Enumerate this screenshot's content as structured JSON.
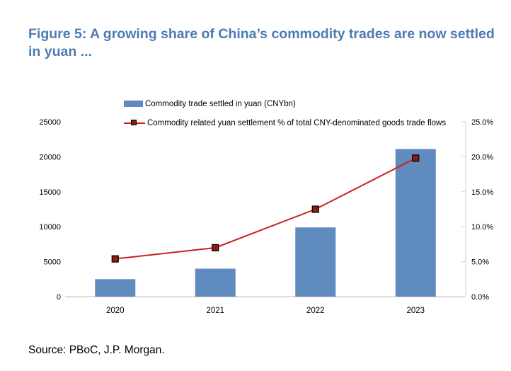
{
  "header": {
    "title": "Figure 5: A growing share of China’s commodity trades are now settled in yuan ..."
  },
  "source": {
    "text": "Source: PBoC, J.P. Morgan."
  },
  "colors": {
    "title_text": "#4d7cb2",
    "bar_fill": "#5f8bbe",
    "line_stroke": "#cb201d",
    "marker_fill": "#8e1b12",
    "marker_stroke": "#000000",
    "axis_gray": "#d2d2d2",
    "tick_text": "#000000"
  },
  "chart_data": {
    "type": "bar",
    "subtype": "bar-and-line-dual-axis",
    "categories": [
      "2020",
      "2021",
      "2022",
      "2023"
    ],
    "series": [
      {
        "name": "Commodity trade settled in yuan (CNYbn)",
        "type": "bar",
        "axis": "left",
        "values": [
          2500,
          4000,
          9900,
          21100
        ]
      },
      {
        "name": "Commodity related yuan settlement % of total CNY-denominated goods trade flows",
        "type": "line",
        "axis": "right",
        "values": [
          5.4,
          7.0,
          12.5,
          19.8
        ]
      }
    ],
    "left_axis": {
      "min": 0,
      "max": 25000,
      "step": 5000,
      "tick_labels": [
        "0",
        "5000",
        "10000",
        "15000",
        "20000",
        "25000"
      ]
    },
    "right_axis": {
      "min": 0,
      "max": 25,
      "step": 5,
      "tick_labels": [
        "0.0%",
        "5.0%",
        "10.0%",
        "15.0%",
        "20.0%",
        "25.0%"
      ]
    },
    "legend_position": "top-left",
    "grid": false
  }
}
